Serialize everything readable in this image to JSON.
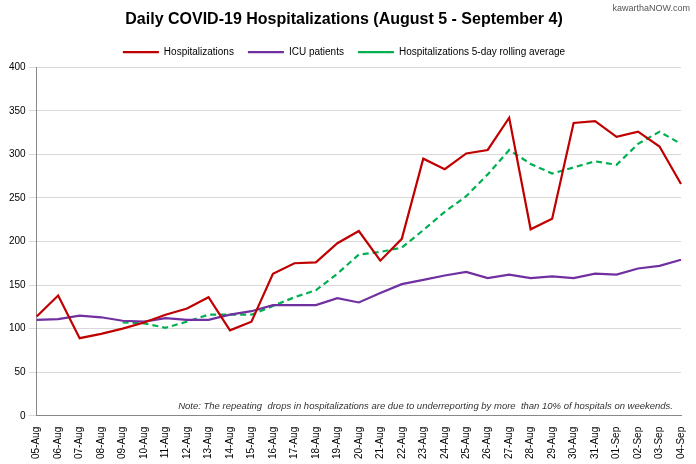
{
  "chart_data": {
    "type": "line",
    "title": "Daily COVID-19 Hospitalizations (August 5 - September 4)",
    "categories": [
      "05-Aug",
      "06-Aug",
      "07-Aug",
      "08-Aug",
      "09-Aug",
      "10-Aug",
      "11-Aug",
      "12-Aug",
      "13-Aug",
      "14-Aug",
      "15-Aug",
      "16-Aug",
      "17-Aug",
      "18-Aug",
      "19-Aug",
      "20-Aug",
      "21-Aug",
      "22-Aug",
      "23-Aug",
      "24-Aug",
      "25-Aug",
      "26-Aug",
      "27-Aug",
      "28-Aug",
      "29-Aug",
      "30-Aug",
      "31-Aug",
      "01-Sep",
      "02-Sep",
      "03-Sep",
      "04-Sep"
    ],
    "series": [
      {
        "name": "Hospitalizations",
        "color": "#c00000",
        "line_style": "solid",
        "marker": "none",
        "values": [
          114,
          138,
          89,
          94,
          100,
          107,
          116,
          123,
          136,
          98,
          108,
          163,
          175,
          176,
          198,
          212,
          178,
          203,
          295,
          283,
          301,
          305,
          342,
          214,
          226,
          336,
          338,
          320,
          326,
          309,
          266
        ]
      },
      {
        "name": "ICU patients",
        "color": "#7030a0",
        "line_style": "solid",
        "marker": "none",
        "values": [
          110,
          111,
          115,
          113,
          109,
          108,
          112,
          110,
          110,
          116,
          120,
          127,
          127,
          127,
          135,
          130,
          141,
          151,
          156,
          161,
          165,
          158,
          162,
          158,
          160,
          158,
          163,
          162,
          169,
          172,
          179
        ]
      },
      {
        "name": "Hospitalizations 5-day rolling average",
        "color": "#00b050",
        "line_style": "dashed",
        "marker": "none",
        "values": [
          null,
          null,
          null,
          null,
          107,
          106,
          101,
          108,
          116,
          116,
          116,
          126,
          136,
          144,
          163,
          185,
          188,
          193,
          213,
          234,
          252,
          277,
          305,
          289,
          278,
          285,
          292,
          288,
          312,
          326,
          312
        ]
      }
    ],
    "ylim": [
      0,
      400
    ],
    "yticks": [
      0,
      50,
      100,
      150,
      200,
      250,
      300,
      350,
      400
    ],
    "grid": true,
    "legend": "top",
    "annotations": [
      "Note: The repeating  drops in hospitalizations are due to underreporting by more  than 10% of hospitals on weekends.",
      "kawarthaNOW.com"
    ]
  }
}
